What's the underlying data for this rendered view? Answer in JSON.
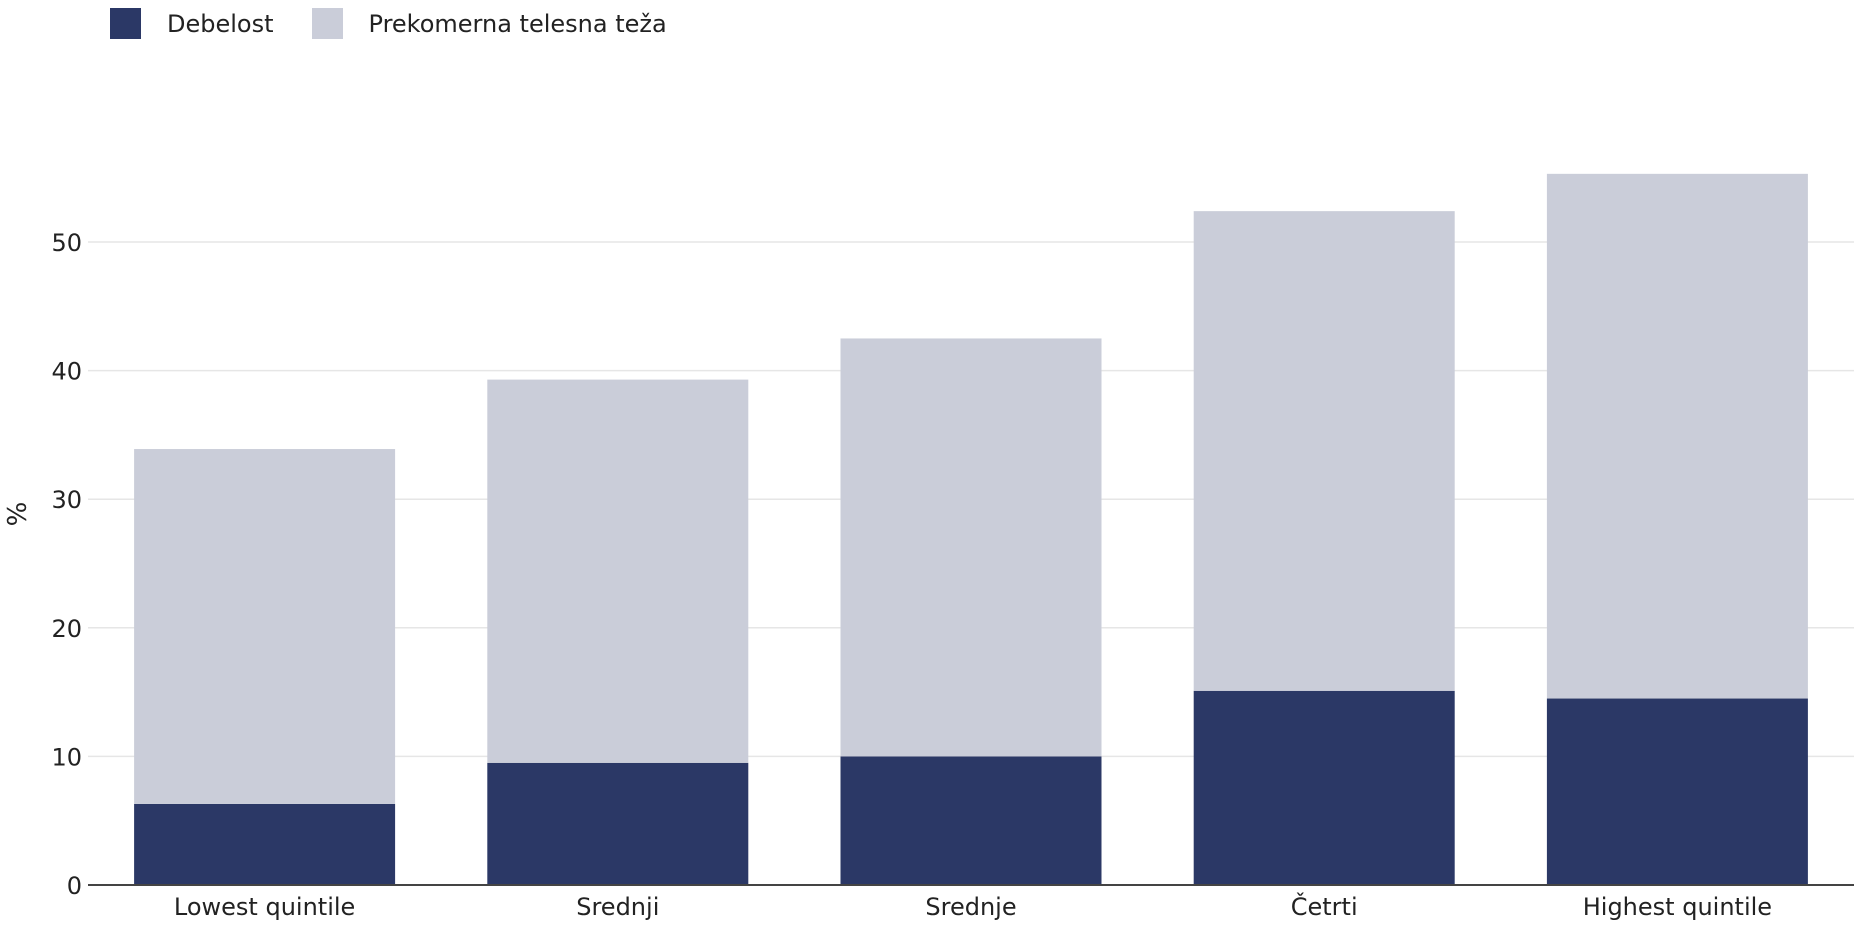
{
  "chart_data": {
    "type": "bar",
    "stacked": true,
    "categories": [
      "Lowest quintile",
      "Srednji",
      "Srednje",
      "Četrti",
      "Highest quintile"
    ],
    "series": [
      {
        "name": "Debelost",
        "color": "#2b3866",
        "values": [
          6.3,
          9.5,
          10.0,
          15.1,
          14.5
        ]
      },
      {
        "name": "Prekomerna telesna teža",
        "color": "#cacdd9",
        "values": [
          27.6,
          29.8,
          32.5,
          37.3,
          40.8
        ]
      }
    ],
    "title": "",
    "xlabel": "",
    "ylabel": "%",
    "ylim": [
      0,
      60
    ],
    "yticks": [
      0,
      10,
      20,
      30,
      40,
      50
    ],
    "grid": true,
    "legend_position": "top-left"
  }
}
